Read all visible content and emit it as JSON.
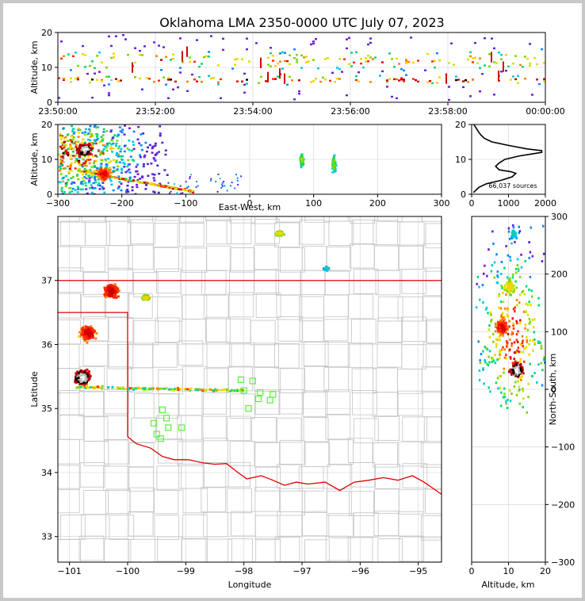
{
  "chart_data": [
    {
      "id": "time-height",
      "type": "heatmap",
      "title": "Oklahoma LMA 2350-0000 UTC July 07, 2023",
      "ylabel": "Altitude, km",
      "xlabel": "",
      "x_ticks": [
        "23:50:00",
        "23:52:00",
        "23:54:00",
        "23:56:00",
        "23:58:00",
        "00:00:00"
      ],
      "y_ticks": [
        "0",
        "10",
        "20"
      ],
      "ylim": [
        0,
        20
      ],
      "description_bands": [
        {
          "altitude_km": 6,
          "density": "high"
        },
        {
          "altitude_km": 12,
          "density": "high"
        }
      ]
    },
    {
      "id": "ew-altitude",
      "type": "heatmap",
      "xlabel": "East-West, km",
      "ylabel": "Altitude, km",
      "x_ticks": [
        "−300",
        "−200",
        "−100",
        "0",
        "100",
        "200",
        "300"
      ],
      "y_ticks": [
        "0",
        "10",
        "20"
      ],
      "xlim": [
        -300,
        300
      ],
      "ylim": [
        0,
        20
      ],
      "clusters": [
        {
          "x_km": -260,
          "alt_km": 13,
          "intensity": "max"
        },
        {
          "x_km": -230,
          "alt_km": 6,
          "intensity": "high"
        },
        {
          "x_km": 80,
          "alt_km": 10,
          "intensity": "low"
        },
        {
          "x_km": 130,
          "alt_km": 9,
          "intensity": "low"
        }
      ]
    },
    {
      "id": "altitude-histogram",
      "type": "line",
      "x_ticks": [
        "0",
        "1000",
        "2000"
      ],
      "y_ticks": [
        "0",
        "10",
        "20"
      ],
      "xlim": [
        0,
        2000
      ],
      "ylim": [
        0,
        20
      ],
      "annotation": "66,037 sources",
      "series": [
        {
          "alt": [
            0.5,
            1,
            1.5,
            2,
            3,
            4,
            5,
            6,
            6.5,
            7,
            8,
            9,
            10,
            11,
            11.5,
            12,
            12.5,
            13,
            14,
            15,
            16,
            17,
            18,
            19,
            20
          ],
          "count": [
            50,
            100,
            150,
            200,
            400,
            800,
            1100,
            1200,
            1050,
            750,
            650,
            750,
            900,
            1300,
            1600,
            1900,
            1900,
            1500,
            1000,
            550,
            350,
            250,
            180,
            120,
            60
          ]
        }
      ]
    },
    {
      "id": "plan-view-map",
      "type": "scatter",
      "xlabel": "Longitude",
      "ylabel": "Latitude",
      "x_ticks": [
        "−101",
        "−100",
        "−99",
        "−98",
        "−97",
        "−96",
        "−95"
      ],
      "y_ticks": [
        "33",
        "34",
        "35",
        "36",
        "37"
      ],
      "xlim": [
        -101.2,
        -94.6
      ],
      "ylim": [
        32.6,
        38
      ],
      "stations": [
        [
          -98.05,
          35.45
        ],
        [
          -97.85,
          35.43
        ],
        [
          -98.0,
          35.28
        ],
        [
          -97.72,
          35.25
        ],
        [
          -97.5,
          35.22
        ],
        [
          -97.75,
          35.15
        ],
        [
          -97.55,
          35.13
        ],
        [
          -97.92,
          35.0
        ],
        [
          -99.4,
          34.98
        ],
        [
          -99.33,
          34.85
        ],
        [
          -99.55,
          34.77
        ],
        [
          -99.3,
          34.7
        ],
        [
          -99.07,
          34.7
        ],
        [
          -99.5,
          34.6
        ],
        [
          -99.43,
          34.53
        ]
      ],
      "clusters": [
        {
          "lon": -100.8,
          "lat": 35.5,
          "intensity": "max"
        },
        {
          "lon": -100.7,
          "lat": 36.2,
          "intensity": "high"
        },
        {
          "lon": -100.3,
          "lat": 36.85,
          "intensity": "high"
        },
        {
          "lon": -99.7,
          "lat": 36.75,
          "intensity": "medium"
        },
        {
          "lon": -97.4,
          "lat": 37.75,
          "intensity": "medium"
        },
        {
          "lon": -96.6,
          "lat": 37.2,
          "intensity": "low"
        }
      ]
    },
    {
      "id": "altitude-ns",
      "type": "heatmap",
      "xlabel": "Altitude, km",
      "ylabel": "North-South, km",
      "x_ticks": [
        "0",
        "10",
        "20"
      ],
      "y_ticks": [
        "300",
        "200",
        "100",
        "0",
        "−100",
        "−200",
        "−300"
      ],
      "xlim": [
        0,
        20
      ],
      "ylim": [
        -300,
        300
      ],
      "clusters": [
        {
          "alt_km": 12,
          "ns_km": 35,
          "intensity": "max"
        },
        {
          "alt_km": 8,
          "ns_km": 110,
          "intensity": "high"
        },
        {
          "alt_km": 10,
          "ns_km": 180,
          "intensity": "medium"
        },
        {
          "alt_km": 11,
          "ns_km": 270,
          "intensity": "low"
        }
      ]
    }
  ]
}
